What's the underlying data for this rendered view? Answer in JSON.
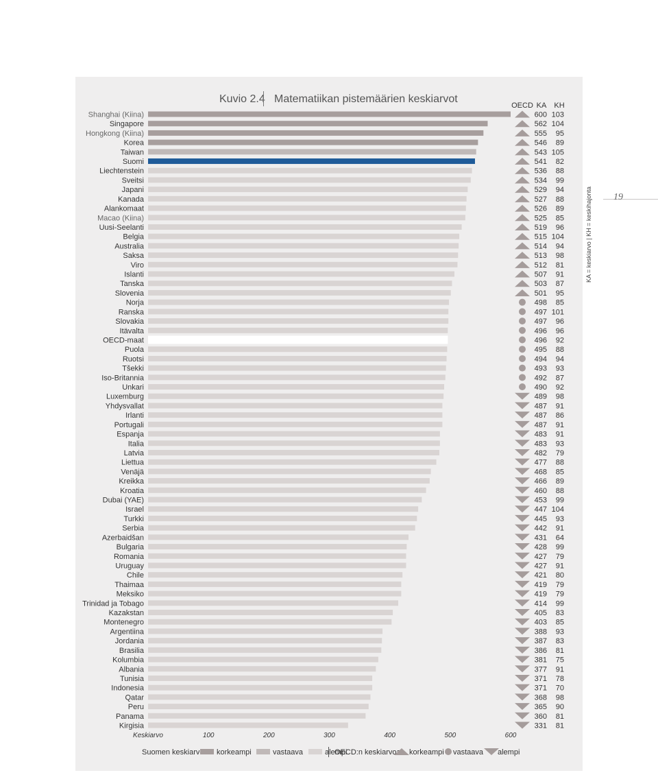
{
  "page_number": "19",
  "side_note": "KA = keskiarvo  |  KH = keskihajonta",
  "chart_data": {
    "type": "bar",
    "orientation": "horizontal",
    "figure_label": "Kuvio 2.4",
    "title": "Matematiikan pistemäärien keskiarvot",
    "column_headers": {
      "oecd": "OECD",
      "ka": "KA",
      "kh": "KH"
    },
    "x_axis_label": "Keskiarvo",
    "xlim": [
      0,
      600
    ],
    "x_ticks": [
      100,
      200,
      300,
      400,
      500,
      600
    ],
    "grid": false,
    "categories": [
      "Shanghai (Kiina)",
      "Singapore",
      "Hongkong (Kiina)",
      "Korea",
      "Taiwan",
      "Suomi",
      "Liechtenstein",
      "Sveitsi",
      "Japani",
      "Kanada",
      "Alankomaat",
      "Macao (Kiina)",
      "Uusi-Seelanti",
      "Belgia",
      "Australia",
      "Saksa",
      "Viro",
      "Islanti",
      "Tanska",
      "Slovenia",
      "Norja",
      "Ranska",
      "Slovakia",
      "Itävalta",
      "OECD-maat",
      "Puola",
      "Ruotsi",
      "Tšekki",
      "Iso-Britannia",
      "Unkari",
      "Luxemburg",
      "Yhdysvallat",
      "Irlanti",
      "Portugali",
      "Espanja",
      "Italia",
      "Latvia",
      "Liettua",
      "Venäjä",
      "Kreikka",
      "Kroatia",
      "Dubai (YAE)",
      "Israel",
      "Turkki",
      "Serbia",
      "Azerbaidšan",
      "Bulgaria",
      "Romania",
      "Uruguay",
      "Chile",
      "Thaimaa",
      "Meksiko",
      "Trinidad ja Tobago",
      "Kazakstan",
      "Montenegro",
      "Argentiina",
      "Jordania",
      "Brasilia",
      "Kolumbia",
      "Albania",
      "Tunisia",
      "Indonesia",
      "Qatar",
      "Peru",
      "Panama",
      "Kirgisia"
    ],
    "ka": [
      600,
      562,
      555,
      546,
      543,
      541,
      536,
      534,
      529,
      527,
      526,
      525,
      519,
      515,
      514,
      513,
      512,
      507,
      503,
      501,
      498,
      497,
      497,
      496,
      496,
      495,
      494,
      493,
      492,
      490,
      489,
      487,
      487,
      487,
      483,
      483,
      482,
      477,
      468,
      466,
      460,
      453,
      447,
      445,
      442,
      431,
      428,
      427,
      427,
      421,
      419,
      419,
      414,
      405,
      403,
      388,
      387,
      386,
      381,
      377,
      371,
      371,
      368,
      365,
      360,
      331
    ],
    "kh": [
      103,
      104,
      95,
      89,
      105,
      82,
      88,
      99,
      94,
      88,
      89,
      85,
      96,
      104,
      94,
      98,
      81,
      91,
      87,
      95,
      85,
      101,
      96,
      96,
      92,
      88,
      94,
      93,
      87,
      92,
      98,
      91,
      86,
      91,
      91,
      93,
      79,
      88,
      85,
      89,
      88,
      99,
      104,
      93,
      91,
      64,
      99,
      79,
      91,
      80,
      79,
      79,
      99,
      83,
      85,
      93,
      83,
      81,
      75,
      91,
      78,
      70,
      98,
      90,
      81,
      81
    ],
    "oecd_markers": [
      "up",
      "up",
      "up",
      "up",
      "up",
      "up",
      "up",
      "up",
      "up",
      "up",
      "up",
      "up",
      "up",
      "up",
      "up",
      "up",
      "up",
      "up",
      "up",
      "up",
      "dot",
      "dot",
      "dot",
      "dot",
      "dot",
      "dot",
      "dot",
      "dot",
      "dot",
      "dot",
      "down",
      "down",
      "down",
      "down",
      "down",
      "down",
      "down",
      "down",
      "down",
      "down",
      "down",
      "down",
      "down",
      "down",
      "down",
      "down",
      "down",
      "down",
      "down",
      "down",
      "down",
      "down",
      "down",
      "down",
      "down",
      "down",
      "down",
      "down",
      "down",
      "down",
      "down",
      "down",
      "down",
      "down",
      "down",
      "down"
    ],
    "legend": {
      "group1_label": "Suomen keskiarvoa",
      "group1_items": [
        "korkeampi",
        "vastaava",
        "alempi"
      ],
      "group2_label": "OECD:n keskiarvoa",
      "group2_items": [
        "korkeampi",
        "vastaava",
        "alempi"
      ],
      "placement": "bottom"
    },
    "colors": {
      "higher": "#a79e9d",
      "similar": "#c0b9b8",
      "lower": "#d9d4d3",
      "finland": "#1f5b99",
      "oecd_avg": "#ffffff",
      "marker": "#a59c9b",
      "panel": "#efeeee"
    }
  }
}
